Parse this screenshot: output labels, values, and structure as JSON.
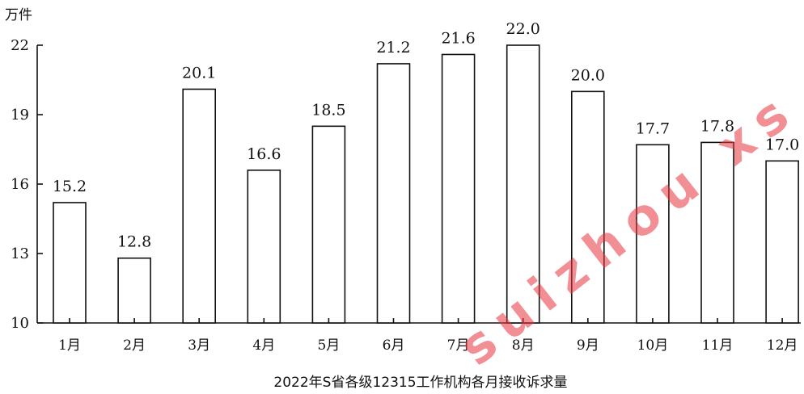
{
  "chart_data": {
    "type": "bar",
    "title": "2022年S省各级12315工作机构各月接收诉求量",
    "unit": "万件",
    "categories": [
      "1月",
      "2月",
      "3月",
      "4月",
      "5月",
      "6月",
      "7月",
      "8月",
      "9月",
      "10月",
      "11月",
      "12月"
    ],
    "values": [
      15.2,
      12.8,
      20.1,
      16.6,
      18.5,
      21.2,
      21.6,
      22.0,
      20.0,
      17.7,
      17.8,
      17.0
    ],
    "value_labels": [
      "15.2",
      "12.8",
      "20.1",
      "16.6",
      "18.5",
      "21.2",
      "21.6",
      "22.0",
      "20.0",
      "17.7",
      "17.8",
      "17.0"
    ],
    "yticks": [
      10,
      13,
      16,
      19,
      22
    ],
    "ylim": [
      10,
      22
    ],
    "grid": false,
    "legend": "none",
    "colors": {
      "bar_fill": "#ffffff",
      "bar_stroke": "#111111",
      "watermark": "#e8353f"
    }
  },
  "watermark": {
    "text": "suizhou xs"
  }
}
